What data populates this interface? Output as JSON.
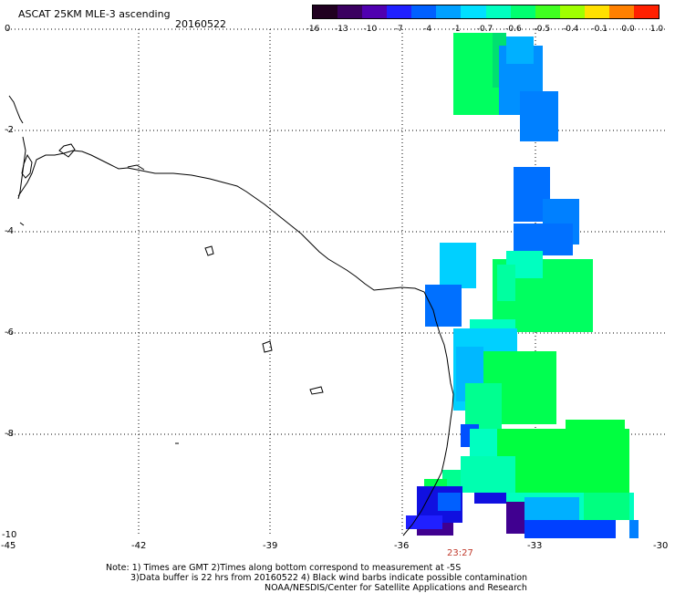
{
  "header": {
    "title": "ASCAT 25KM MLE-3 ascending",
    "date": "20160522"
  },
  "colorbar": {
    "ticks": [
      "-16",
      "-13",
      "-10",
      "-7",
      "-4",
      "-1",
      "-0.7",
      "-0.6",
      "-0.5",
      "-0.4",
      "-0.1",
      "0.0",
      "1.0"
    ],
    "colors": [
      "#200020",
      "#3a0060",
      "#5000b0",
      "#2020ff",
      "#0060ff",
      "#00a0ff",
      "#00e0ff",
      "#00ffc0",
      "#00ff70",
      "#40ff20",
      "#a0ff00",
      "#ffe000",
      "#ff8000",
      "#ff2000"
    ]
  },
  "axes": {
    "y_labels": [
      "0",
      "-2",
      "-4",
      "-6",
      "-8",
      "-10"
    ],
    "x_labels": [
      "-45",
      "-42",
      "-39",
      "-36",
      "-33",
      "-30"
    ]
  },
  "timestamp": "23:27",
  "notes": {
    "line1": "Note: 1) Times are GMT 2)Times along bottom correspond to measurement at -5S",
    "line2": "3)Data buffer is 22 hrs from 20160522 4) Black wind barbs indicate possible contamination",
    "line3": "NOAA/NESDIS/Center for Satellite Applications and Research"
  }
}
